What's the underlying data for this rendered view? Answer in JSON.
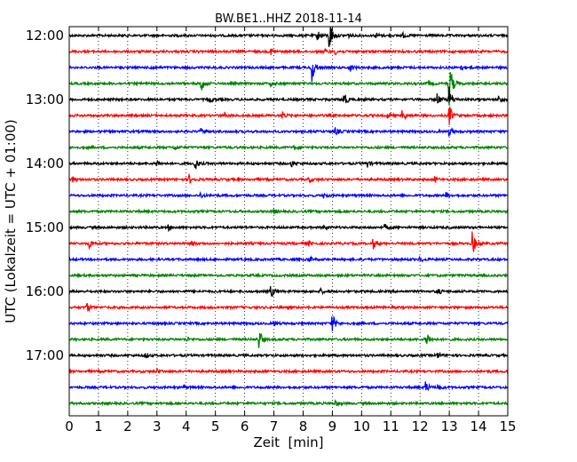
{
  "chart_data": {
    "type": "line",
    "title": "BW.BE1..HHZ 2018-11-14",
    "xlabel": "Zeit  [min]",
    "ylabel": "UTC (Lokalzeit = UTC + 01:00)",
    "xlim": [
      0,
      15
    ],
    "x_ticks": [
      "0",
      "1",
      "2",
      "3",
      "4",
      "5",
      "6",
      "7",
      "8",
      "9",
      "10",
      "11",
      "12",
      "13",
      "14",
      "15"
    ],
    "y_ticks": [
      "12:00",
      "13:00",
      "14:00",
      "15:00",
      "16:00",
      "17:00"
    ],
    "grid": "vertical dotted",
    "line_interval_minutes": 15,
    "colors": [
      "#000000",
      "#ff0000",
      "#0000ff",
      "#008000"
    ],
    "series": [
      {
        "start": "12:00",
        "color": "#000000",
        "events": [
          {
            "t": 8.9,
            "amp": 2.0
          },
          {
            "t": 8.5,
            "amp": 0.6
          },
          {
            "t": 9.5,
            "amp": 0.35
          },
          {
            "t": 10.5,
            "amp": 0.3
          },
          {
            "t": 11.4,
            "amp": 0.3
          }
        ]
      },
      {
        "start": "12:15",
        "color": "#ff0000",
        "events": [
          {
            "t": 6.9,
            "amp": 0.35
          },
          {
            "t": 8.7,
            "amp": 0.3
          },
          {
            "t": 9.1,
            "amp": 0.3
          }
        ]
      },
      {
        "start": "12:30",
        "color": "#0000ff",
        "events": [
          {
            "t": 8.3,
            "amp": 1.8
          },
          {
            "t": 9.6,
            "amp": 0.5
          },
          {
            "t": 2.8,
            "amp": 0.3
          },
          {
            "t": 13.4,
            "amp": 0.3
          }
        ]
      },
      {
        "start": "12:45",
        "color": "#008000",
        "events": [
          {
            "t": 4.5,
            "amp": 1.1
          },
          {
            "t": 6.9,
            "amp": 0.3
          },
          {
            "t": 12.3,
            "amp": 0.3
          },
          {
            "t": 13.0,
            "amp": 3.0
          }
        ]
      },
      {
        "start": "13:00",
        "color": "#000000",
        "events": [
          {
            "t": 9.4,
            "amp": 0.9
          },
          {
            "t": 13.0,
            "amp": 1.6
          },
          {
            "t": 12.6,
            "amp": 0.7
          },
          {
            "t": 14.7,
            "amp": 0.6
          },
          {
            "t": 4.8,
            "amp": 0.3
          }
        ]
      },
      {
        "start": "13:15",
        "color": "#ff0000",
        "events": [
          {
            "t": 11.4,
            "amp": 0.9
          },
          {
            "t": 13.0,
            "amp": 1.3
          },
          {
            "t": 7.3,
            "amp": 0.4
          },
          {
            "t": 10.9,
            "amp": 0.4
          },
          {
            "t": 5.3,
            "amp": 0.3
          }
        ]
      },
      {
        "start": "13:30",
        "color": "#0000ff",
        "events": [
          {
            "t": 9.1,
            "amp": 0.5
          },
          {
            "t": 13.0,
            "amp": 0.5
          },
          {
            "t": 4.5,
            "amp": 0.3
          }
        ]
      },
      {
        "start": "13:45",
        "color": "#008000",
        "events": [
          {
            "t": 3.6,
            "amp": 0.35
          },
          {
            "t": 7.7,
            "amp": 0.3
          }
        ]
      },
      {
        "start": "14:00",
        "color": "#000000",
        "events": [
          {
            "t": 4.3,
            "amp": 0.8
          },
          {
            "t": 3.0,
            "amp": 0.4
          },
          {
            "t": 7.6,
            "amp": 0.4
          },
          {
            "t": 10.2,
            "amp": 0.4
          }
        ]
      },
      {
        "start": "14:15",
        "color": "#ff0000",
        "events": [
          {
            "t": 4.1,
            "amp": 0.5
          },
          {
            "t": 0.1,
            "amp": 0.3
          },
          {
            "t": 8.2,
            "amp": 0.3
          },
          {
            "t": 12.5,
            "amp": 0.3
          }
        ]
      },
      {
        "start": "14:30",
        "color": "#0000ff",
        "events": [
          {
            "t": 4.5,
            "amp": 0.35
          },
          {
            "t": 12.9,
            "amp": 0.35
          },
          {
            "t": 8.7,
            "amp": 0.3
          }
        ]
      },
      {
        "start": "14:45",
        "color": "#008000",
        "events": [
          {
            "t": 7.0,
            "amp": 0.3
          }
        ]
      },
      {
        "start": "15:00",
        "color": "#000000",
        "events": [
          {
            "t": 3.4,
            "amp": 0.3
          },
          {
            "t": 10.8,
            "amp": 0.35
          },
          {
            "t": 8.7,
            "amp": 0.25
          }
        ]
      },
      {
        "start": "15:15",
        "color": "#ff0000",
        "events": [
          {
            "t": 13.8,
            "amp": 1.4
          },
          {
            "t": 0.7,
            "amp": 0.6
          },
          {
            "t": 10.4,
            "amp": 0.6
          },
          {
            "t": 8.2,
            "amp": 0.3
          },
          {
            "t": 4.2,
            "amp": 0.3
          }
        ]
      },
      {
        "start": "15:30",
        "color": "#0000ff",
        "events": [
          {
            "t": 8.2,
            "amp": 0.4
          },
          {
            "t": 12.0,
            "amp": 0.3
          }
        ]
      },
      {
        "start": "15:45",
        "color": "#008000",
        "events": []
      },
      {
        "start": "16:00",
        "color": "#000000",
        "events": [
          {
            "t": 6.9,
            "amp": 0.8
          },
          {
            "t": 12.6,
            "amp": 0.4
          },
          {
            "t": 8.6,
            "amp": 0.3
          }
        ]
      },
      {
        "start": "16:15",
        "color": "#ff0000",
        "events": [
          {
            "t": 0.6,
            "amp": 0.6
          }
        ]
      },
      {
        "start": "16:30",
        "color": "#0000ff",
        "events": [
          {
            "t": 9.0,
            "amp": 1.1
          },
          {
            "t": 7.0,
            "amp": 0.3
          }
        ]
      },
      {
        "start": "16:45",
        "color": "#008000",
        "events": [
          {
            "t": 6.5,
            "amp": 1.2
          },
          {
            "t": 12.2,
            "amp": 1.2
          },
          {
            "t": 4.0,
            "amp": 0.3
          }
        ]
      },
      {
        "start": "17:00",
        "color": "#000000",
        "events": [
          {
            "t": 2.6,
            "amp": 0.4
          },
          {
            "t": 12.6,
            "amp": 0.35
          }
        ]
      },
      {
        "start": "17:15",
        "color": "#ff0000",
        "events": [
          {
            "t": 3.0,
            "amp": 0.25
          }
        ]
      },
      {
        "start": "17:30",
        "color": "#0000ff",
        "events": [
          {
            "t": 12.2,
            "amp": 0.7
          },
          {
            "t": 12.6,
            "amp": 0.4
          },
          {
            "t": 3.9,
            "amp": 0.3
          }
        ]
      },
      {
        "start": "17:45",
        "color": "#008000",
        "events": [
          {
            "t": 9.1,
            "amp": 0.35
          }
        ]
      }
    ]
  }
}
